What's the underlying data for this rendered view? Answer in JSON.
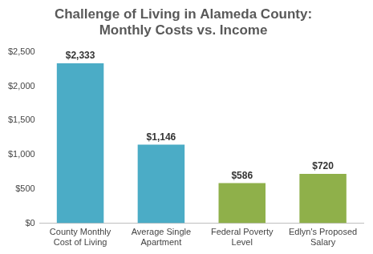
{
  "chart_data": {
    "type": "bar",
    "title": [
      "Challenge of Living in Alameda County:",
      "Monthly Costs vs. Income"
    ],
    "categories": [
      [
        "County Monthly",
        "Cost of Living"
      ],
      [
        "Average Single",
        "Apartment"
      ],
      [
        "Federal Poverty",
        "Level"
      ],
      [
        "Edlyn's Proposed",
        "Salary"
      ]
    ],
    "values": [
      2333,
      1146,
      586,
      720
    ],
    "value_labels": [
      "$2,333",
      "$1,146",
      "$586",
      "$720"
    ],
    "colors": [
      "#4bacc6",
      "#4bacc6",
      "#8fb04a",
      "#8fb04a"
    ],
    "ylim": [
      0,
      2500
    ],
    "yticks": [
      {
        "value": 0,
        "label": "$0"
      },
      {
        "value": 500,
        "label": "$500"
      },
      {
        "value": 1000,
        "label": "$1,000"
      },
      {
        "value": 1500,
        "label": "$1,500"
      },
      {
        "value": 2000,
        "label": "$2,000"
      },
      {
        "value": 2500,
        "label": "$2,500"
      }
    ],
    "grid": false,
    "data_labels": true
  }
}
